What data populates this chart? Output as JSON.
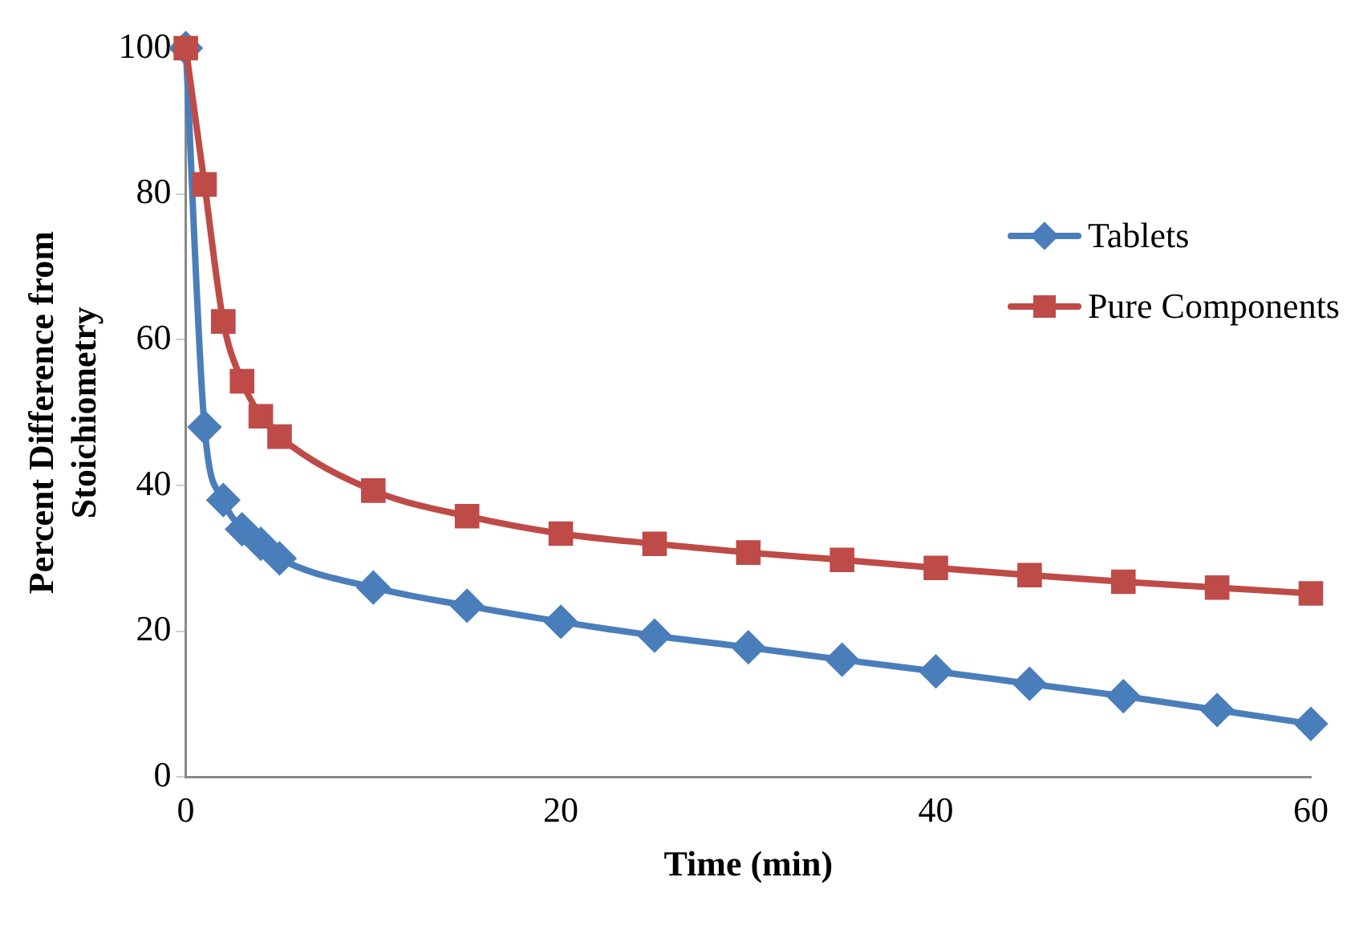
{
  "chart_data": {
    "type": "line",
    "xlabel": "Time (min)",
    "ylabel": "Percent Difference from Stoichiometry",
    "xlim": [
      0,
      60
    ],
    "xticks": [
      0,
      20,
      40,
      60
    ],
    "ylim": [
      0,
      100
    ],
    "yticks": [
      0,
      20,
      40,
      60,
      80,
      100
    ],
    "grid": false,
    "legend": "right",
    "series": [
      {
        "name": "Tablets",
        "color": "#4a7ebb",
        "marker": "diamond",
        "x": [
          0,
          1,
          2,
          3,
          4,
          5,
          10,
          15,
          20,
          25,
          30,
          35,
          40,
          45,
          50,
          55,
          60
        ],
        "values": [
          100,
          48,
          38,
          34,
          32,
          30,
          26,
          23.5,
          21.3,
          19.4,
          17.8,
          16.1,
          14.5,
          12.8,
          11.1,
          9.2,
          7.3
        ]
      },
      {
        "name": "Pure Components",
        "color": "#be4b48",
        "marker": "square",
        "x": [
          0,
          1,
          2,
          3,
          4,
          5,
          10,
          15,
          20,
          25,
          30,
          35,
          40,
          45,
          50,
          55,
          60
        ],
        "values": [
          100,
          81.3,
          62.5,
          54.3,
          49.5,
          46.7,
          39.3,
          35.8,
          33.4,
          32,
          30.8,
          29.8,
          28.7,
          27.7,
          26.8,
          26,
          25.2
        ]
      }
    ]
  }
}
